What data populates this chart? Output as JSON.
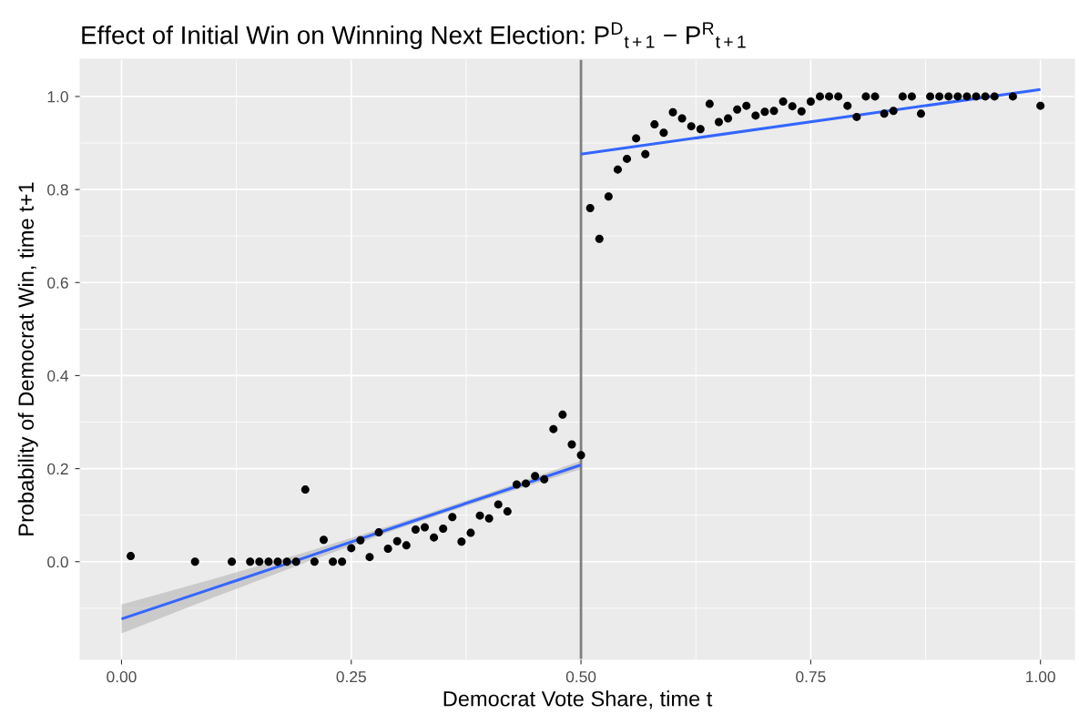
{
  "chart_data": {
    "type": "scatter",
    "title": "Effect of Initial Win on Winning Next Election: P$^{D}$$_{t+1}$ − P$^{R}$$_{t+1}$",
    "xlabel": "Democrat Vote Share, time t",
    "ylabel": "Probability of Democrat Win, time t+1",
    "xlim": [
      -0.045,
      1.037
    ],
    "ylim": [
      -0.21,
      1.08
    ],
    "xticks": [
      {
        "value": 0,
        "label": "0.00"
      },
      {
        "value": 0.25,
        "label": "0.25"
      },
      {
        "value": 0.5,
        "label": "0.50"
      },
      {
        "value": 0.75,
        "label": "0.75"
      },
      {
        "value": 1,
        "label": "1.00"
      }
    ],
    "yticks": [
      {
        "value": 0,
        "label": "0.0"
      },
      {
        "value": 0.2,
        "label": "0.2"
      },
      {
        "value": 0.4,
        "label": "0.4"
      },
      {
        "value": 0.6,
        "label": "0.6"
      },
      {
        "value": 0.8,
        "label": "0.8"
      },
      {
        "value": 1,
        "label": "1.0"
      }
    ],
    "grid": true,
    "marker": "circle",
    "ref_lines": [
      {
        "axis": "x",
        "value": 0.5,
        "color": "#7f7f7f"
      }
    ],
    "series": [
      {
        "color": "#000000",
        "x": [
          0.01,
          0.08,
          0.12,
          0.14,
          0.15,
          0.16,
          0.17,
          0.18,
          0.19,
          0.2,
          0.21,
          0.22,
          0.23,
          0.24,
          0.25,
          0.26,
          0.27,
          0.28,
          0.29,
          0.3,
          0.31,
          0.32,
          0.33,
          0.34,
          0.35,
          0.36,
          0.37,
          0.38,
          0.39,
          0.4,
          0.41,
          0.42,
          0.43,
          0.44,
          0.45,
          0.46,
          0.47,
          0.48,
          0.49,
          0.5,
          0.51,
          0.52,
          0.53,
          0.54,
          0.55,
          0.56,
          0.57,
          0.58,
          0.59,
          0.6,
          0.61,
          0.62,
          0.63,
          0.64,
          0.65,
          0.66,
          0.67,
          0.68,
          0.69,
          0.7,
          0.71,
          0.72,
          0.73,
          0.74,
          0.75,
          0.76,
          0.77,
          0.78,
          0.79,
          0.8,
          0.81,
          0.82,
          0.83,
          0.84,
          0.85,
          0.86,
          0.87,
          0.88,
          0.89,
          0.9,
          0.91,
          0.92,
          0.93,
          0.94,
          0.95,
          0.97,
          1.0
        ],
        "values": [
          0.012,
          0,
          0,
          0,
          0,
          0,
          0,
          0,
          0,
          0.155,
          0,
          0.047,
          0,
          0,
          0.029,
          0.046,
          0.01,
          0.063,
          0.028,
          0.044,
          0.035,
          0.069,
          0.074,
          0.052,
          0.071,
          0.096,
          0.043,
          0.062,
          0.099,
          0.093,
          0.123,
          0.108,
          0.166,
          0.168,
          0.184,
          0.177,
          0.285,
          0.316,
          0.252,
          0.229,
          0.76,
          0.694,
          0.785,
          0.843,
          0.866,
          0.91,
          0.876,
          0.94,
          0.922,
          0.966,
          0.953,
          0.936,
          0.93,
          0.984,
          0.945,
          0.953,
          0.972,
          0.98,
          0.959,
          0.967,
          0.969,
          0.989,
          0.979,
          0.968,
          0.989,
          1,
          1,
          1,
          0.98,
          0.956,
          1,
          1,
          0.963,
          0.969,
          1,
          1,
          0.963,
          1,
          1,
          1,
          1,
          1,
          1,
          1,
          1,
          1,
          0.98
        ]
      },
      {
        "type": "line",
        "marker": "none",
        "color": "#3366ff",
        "x": [
          0,
          0.1,
          0.2,
          0.3,
          0.4,
          0.5
        ],
        "values": [
          -0.123,
          -0.057,
          0.009,
          0.076,
          0.142,
          0.208
        ],
        "lower": [
          -0.154,
          -0.077,
          -0.002,
          0.07,
          0.136,
          0.199
        ],
        "upper": [
          -0.092,
          -0.037,
          0.02,
          0.082,
          0.148,
          0.217
        ]
      },
      {
        "type": "line",
        "marker": "none",
        "color": "#3366ff",
        "x": [
          0.5,
          1.0
        ],
        "values": [
          0.876,
          1.015
        ]
      }
    ]
  }
}
